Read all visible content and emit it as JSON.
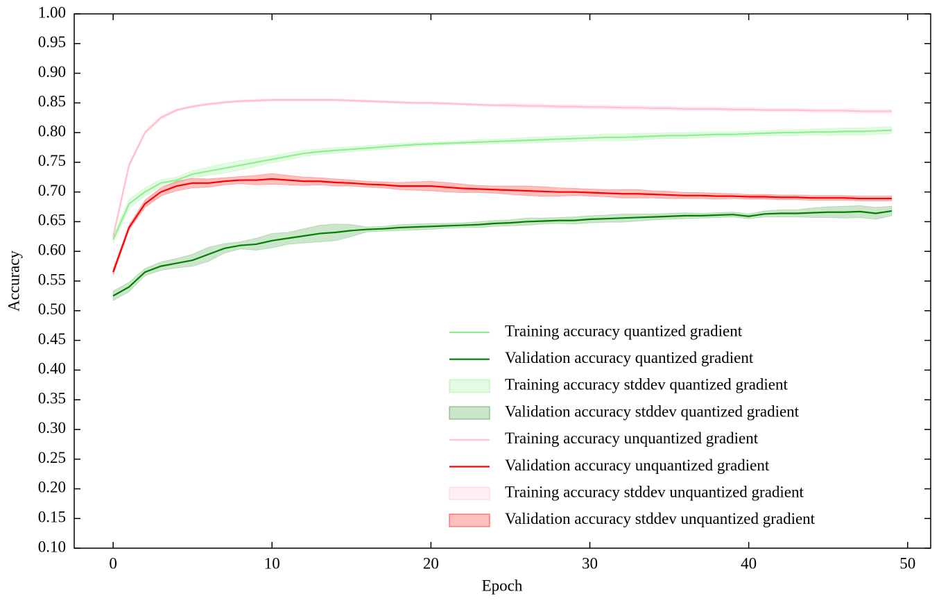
{
  "chart_data": {
    "type": "line",
    "xlabel": "Epoch",
    "ylabel": "Accuracy",
    "xlim": [
      -2.45,
      51.45
    ],
    "ylim": [
      0.1,
      1.0
    ],
    "xticks": [
      0,
      10,
      20,
      30,
      40,
      50
    ],
    "yticks": [
      {
        "value": 0.1,
        "label": "0.10"
      },
      0.15,
      {
        "value": 0.2,
        "label": "0.20"
      },
      0.25,
      {
        "value": 0.3,
        "label": "0.30"
      },
      0.35,
      {
        "value": 0.4,
        "label": "0.40"
      },
      0.45,
      {
        "value": 0.5,
        "label": "0.50"
      },
      0.55,
      {
        "value": 0.6,
        "label": "0.60"
      },
      0.65,
      {
        "value": 0.7,
        "label": "0.70"
      },
      0.75,
      {
        "value": 0.8,
        "label": "0.80"
      },
      0.85,
      {
        "value": 0.9,
        "label": "0.90"
      },
      0.95,
      {
        "value": 1.0,
        "label": "1.00"
      }
    ],
    "legend": "lower right",
    "x": [
      0,
      1,
      2,
      3,
      4,
      5,
      6,
      7,
      8,
      9,
      10,
      11,
      12,
      13,
      14,
      15,
      16,
      17,
      18,
      19,
      20,
      21,
      22,
      23,
      24,
      25,
      26,
      27,
      28,
      29,
      30,
      31,
      32,
      33,
      34,
      35,
      36,
      37,
      38,
      39,
      40,
      41,
      42,
      43,
      44,
      45,
      46,
      47,
      48,
      49
    ],
    "series": [
      {
        "name": "Training accuracy quantized gradient",
        "color": "#90ee90",
        "band_name": "Training accuracy stddev quantized gradient",
        "band_color": "#90ee90",
        "band_opacity": 0.25,
        "values": [
          0.62,
          0.68,
          0.7,
          0.715,
          0.72,
          0.73,
          0.735,
          0.74,
          0.745,
          0.75,
          0.755,
          0.76,
          0.765,
          0.768,
          0.77,
          0.772,
          0.774,
          0.776,
          0.778,
          0.78,
          0.781,
          0.782,
          0.783,
          0.784,
          0.785,
          0.786,
          0.787,
          0.788,
          0.789,
          0.79,
          0.791,
          0.792,
          0.792,
          0.793,
          0.794,
          0.795,
          0.795,
          0.796,
          0.797,
          0.797,
          0.798,
          0.799,
          0.8,
          0.8,
          0.801,
          0.801,
          0.802,
          0.802,
          0.803,
          0.804
        ],
        "std": [
          0.006,
          0.008,
          0.007,
          0.006,
          0.005,
          0.006,
          0.007,
          0.008,
          0.008,
          0.007,
          0.006,
          0.006,
          0.005,
          0.005,
          0.005,
          0.004,
          0.004,
          0.004,
          0.004,
          0.003,
          0.003,
          0.003,
          0.003,
          0.004,
          0.004,
          0.004,
          0.005,
          0.005,
          0.005,
          0.005,
          0.005,
          0.006,
          0.006,
          0.006,
          0.005,
          0.005,
          0.005,
          0.005,
          0.004,
          0.004,
          0.004,
          0.004,
          0.005,
          0.005,
          0.005,
          0.006,
          0.006,
          0.006,
          0.006,
          0.006
        ]
      },
      {
        "name": "Validation accuracy quantized gradient",
        "color": "#008000",
        "band_name": "Validation accuracy stddev quantized gradient",
        "band_color": "#008000",
        "band_opacity": 0.2,
        "values": [
          0.525,
          0.54,
          0.565,
          0.575,
          0.58,
          0.585,
          0.595,
          0.605,
          0.61,
          0.612,
          0.618,
          0.622,
          0.626,
          0.63,
          0.632,
          0.635,
          0.637,
          0.638,
          0.64,
          0.641,
          0.642,
          0.643,
          0.644,
          0.645,
          0.647,
          0.648,
          0.65,
          0.651,
          0.652,
          0.652,
          0.654,
          0.655,
          0.656,
          0.657,
          0.658,
          0.659,
          0.66,
          0.66,
          0.661,
          0.662,
          0.659,
          0.663,
          0.664,
          0.664,
          0.665,
          0.666,
          0.666,
          0.667,
          0.664,
          0.668
        ],
        "std": [
          0.008,
          0.008,
          0.006,
          0.007,
          0.008,
          0.01,
          0.012,
          0.008,
          0.006,
          0.01,
          0.012,
          0.01,
          0.012,
          0.014,
          0.014,
          0.01,
          0.004,
          0.004,
          0.005,
          0.005,
          0.005,
          0.004,
          0.004,
          0.005,
          0.005,
          0.005,
          0.006,
          0.005,
          0.005,
          0.006,
          0.006,
          0.006,
          0.007,
          0.006,
          0.005,
          0.005,
          0.005,
          0.004,
          0.004,
          0.004,
          0.004,
          0.005,
          0.006,
          0.006,
          0.008,
          0.009,
          0.01,
          0.01,
          0.01,
          0.008
        ]
      },
      {
        "name": "Training accuracy unquantized gradient",
        "color": "#ffc0cb",
        "band_name": "Training accuracy stddev unquantized gradient",
        "band_color": "#ffc0cb",
        "band_opacity": 0.25,
        "values": [
          0.625,
          0.745,
          0.8,
          0.825,
          0.838,
          0.844,
          0.848,
          0.851,
          0.853,
          0.854,
          0.855,
          0.855,
          0.855,
          0.855,
          0.855,
          0.854,
          0.853,
          0.852,
          0.851,
          0.85,
          0.85,
          0.849,
          0.848,
          0.847,
          0.846,
          0.846,
          0.845,
          0.845,
          0.844,
          0.844,
          0.843,
          0.843,
          0.842,
          0.842,
          0.841,
          0.841,
          0.84,
          0.84,
          0.84,
          0.839,
          0.839,
          0.838,
          0.838,
          0.838,
          0.837,
          0.837,
          0.837,
          0.836,
          0.836,
          0.836
        ],
        "std": [
          0.004,
          0.004,
          0.003,
          0.003,
          0.002,
          0.002,
          0.002,
          0.002,
          0.002,
          0.002,
          0.002,
          0.002,
          0.002,
          0.002,
          0.002,
          0.002,
          0.002,
          0.002,
          0.002,
          0.002,
          0.002,
          0.002,
          0.002,
          0.002,
          0.002,
          0.003,
          0.003,
          0.003,
          0.003,
          0.003,
          0.003,
          0.003,
          0.003,
          0.003,
          0.003,
          0.003,
          0.003,
          0.003,
          0.003,
          0.003,
          0.003,
          0.003,
          0.003,
          0.003,
          0.003,
          0.003,
          0.003,
          0.003,
          0.003,
          0.003
        ]
      },
      {
        "name": "Validation accuracy unquantized gradient",
        "color": "#ff0000",
        "band_name": "Validation accuracy stddev unquantized gradient",
        "band_color": "#ff0000",
        "band_opacity": 0.25,
        "values": [
          0.565,
          0.64,
          0.68,
          0.7,
          0.71,
          0.715,
          0.715,
          0.718,
          0.72,
          0.72,
          0.722,
          0.72,
          0.718,
          0.718,
          0.716,
          0.715,
          0.713,
          0.712,
          0.71,
          0.71,
          0.71,
          0.708,
          0.706,
          0.705,
          0.704,
          0.703,
          0.702,
          0.701,
          0.7,
          0.7,
          0.699,
          0.698,
          0.697,
          0.697,
          0.696,
          0.695,
          0.694,
          0.694,
          0.693,
          0.693,
          0.692,
          0.692,
          0.691,
          0.691,
          0.69,
          0.69,
          0.69,
          0.689,
          0.689,
          0.689
        ],
        "std": [
          0.005,
          0.004,
          0.006,
          0.007,
          0.008,
          0.008,
          0.007,
          0.006,
          0.006,
          0.008,
          0.009,
          0.008,
          0.007,
          0.006,
          0.006,
          0.005,
          0.005,
          0.005,
          0.006,
          0.007,
          0.008,
          0.008,
          0.007,
          0.006,
          0.006,
          0.007,
          0.008,
          0.008,
          0.007,
          0.006,
          0.006,
          0.006,
          0.007,
          0.007,
          0.006,
          0.006,
          0.005,
          0.005,
          0.005,
          0.004,
          0.004,
          0.004,
          0.004,
          0.004,
          0.004,
          0.004,
          0.004,
          0.004,
          0.004,
          0.004
        ]
      }
    ]
  }
}
